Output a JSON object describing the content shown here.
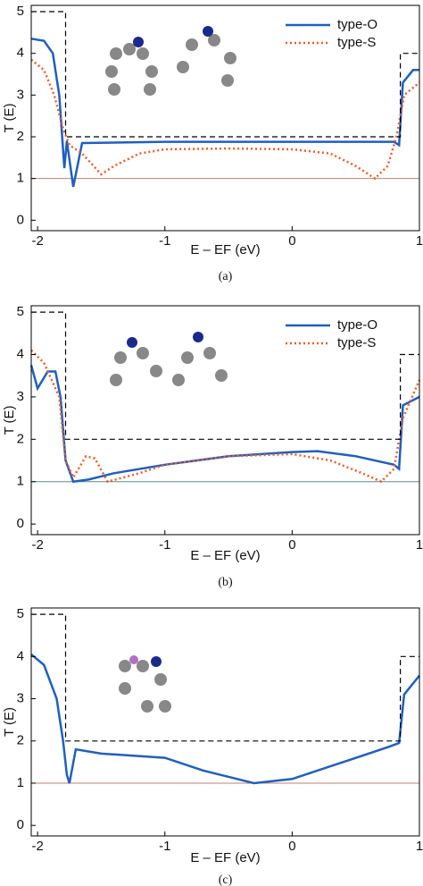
{
  "chart_data": [
    {
      "type": "line",
      "caption": "(a)",
      "x_label": "E – EF (eV)",
      "y_label": "T (E)",
      "xlim": [
        -2.05,
        1.0
      ],
      "ylim": [
        -0.25,
        5.15
      ],
      "xticks": [
        -2,
        -1,
        0,
        1
      ],
      "yticks": [
        0,
        1,
        2,
        3,
        4,
        5
      ],
      "reference_line": 1,
      "reference_color": "#c08070",
      "legend": "upper right",
      "series": [
        {
          "name": "type-O",
          "color": "#1f5fbf",
          "style": "solid",
          "x": [
            -2.05,
            -1.95,
            -1.88,
            -1.83,
            -1.79,
            -1.77,
            -1.72,
            -1.65,
            -1.0,
            0,
            0.8,
            0.84,
            0.87,
            0.95,
            1.0
          ],
          "values": [
            4.35,
            4.3,
            4.0,
            3.0,
            1.25,
            1.9,
            0.8,
            1.85,
            1.88,
            1.88,
            1.88,
            1.8,
            3.3,
            3.6,
            3.6
          ]
        },
        {
          "name": "type-S",
          "color": "#f05a28",
          "style": "dotted",
          "x": [
            -2.05,
            -1.95,
            -1.87,
            -1.8,
            -1.75,
            -1.65,
            -1.5,
            -1.4,
            -1.2,
            -1.0,
            -0.5,
            0,
            0.3,
            0.5,
            0.65,
            0.75,
            0.82,
            0.88,
            1.0
          ],
          "values": [
            3.85,
            3.6,
            3.0,
            2.2,
            1.8,
            1.6,
            1.1,
            1.3,
            1.6,
            1.7,
            1.72,
            1.7,
            1.6,
            1.3,
            1.0,
            1.3,
            2.0,
            3.0,
            3.3
          ]
        },
        {
          "color": "#000000",
          "style": "dashed",
          "x": [
            -2.05,
            -1.78,
            -1.78,
            0.85,
            0.85,
            1.0
          ],
          "values": [
            5,
            5,
            2,
            2,
            4,
            4
          ]
        }
      ]
    },
    {
      "type": "line",
      "caption": "(b)",
      "x_label": "E – EF (eV)",
      "y_label": "T (E)",
      "xlim": [
        -2.05,
        1.0
      ],
      "ylim": [
        -0.25,
        5.15
      ],
      "xticks": [
        -2,
        -1,
        0,
        1
      ],
      "yticks": [
        0,
        1,
        2,
        3,
        4,
        5
      ],
      "reference_line": 1,
      "reference_color": "#5a8a8a",
      "legend": "upper right",
      "series": [
        {
          "name": "type-O",
          "color": "#1f5fbf",
          "style": "solid",
          "x": [
            -2.05,
            -2.0,
            -1.92,
            -1.86,
            -1.82,
            -1.78,
            -1.72,
            -1.6,
            -1.4,
            -1.0,
            -0.5,
            0,
            0.2,
            0.5,
            0.8,
            0.84,
            0.87,
            1.0
          ],
          "values": [
            3.75,
            3.2,
            3.6,
            3.6,
            3.0,
            1.5,
            1.0,
            1.05,
            1.2,
            1.4,
            1.6,
            1.7,
            1.72,
            1.6,
            1.4,
            1.3,
            2.8,
            3.0
          ]
        },
        {
          "name": "type-S",
          "color": "#f05a28",
          "style": "dotted",
          "x": [
            -2.05,
            -1.95,
            -1.83,
            -1.78,
            -1.72,
            -1.62,
            -1.55,
            -1.45,
            -1.2,
            -1.0,
            -0.5,
            0,
            0.3,
            0.55,
            0.7,
            0.8,
            0.87,
            1.0
          ],
          "values": [
            4.1,
            3.8,
            3.0,
            1.5,
            1.1,
            1.6,
            1.55,
            1.0,
            1.2,
            1.4,
            1.6,
            1.65,
            1.5,
            1.2,
            1.0,
            1.3,
            2.5,
            3.4
          ]
        },
        {
          "color": "#000000",
          "style": "dashed",
          "x": [
            -2.05,
            -1.78,
            -1.78,
            0.85,
            0.85,
            1.0
          ],
          "values": [
            5,
            5,
            2,
            2,
            4,
            4
          ]
        }
      ]
    },
    {
      "type": "line",
      "caption": "(c)",
      "x_label": "E – EF (eV)",
      "y_label": "T (E)",
      "xlim": [
        -2.05,
        1.0
      ],
      "ylim": [
        -0.25,
        5.15
      ],
      "xticks": [
        -2,
        -1,
        0,
        1
      ],
      "yticks": [
        0,
        1,
        2,
        3,
        4,
        5
      ],
      "reference_line": 1,
      "reference_color": "#c08070",
      "series": [
        {
          "color": "#1f5fbf",
          "style": "solid",
          "x": [
            -2.05,
            -1.95,
            -1.85,
            -1.8,
            -1.77,
            -1.75,
            -1.7,
            -1.5,
            -1.0,
            -0.7,
            -0.3,
            0,
            0.4,
            0.75,
            0.84,
            0.88,
            1.0
          ],
          "values": [
            4.05,
            3.8,
            3.0,
            2.0,
            1.2,
            1.0,
            1.8,
            1.7,
            1.6,
            1.3,
            1.0,
            1.1,
            1.5,
            1.85,
            1.95,
            3.1,
            3.55
          ]
        },
        {
          "color": "#000000",
          "style": "dashed",
          "x": [
            -2.05,
            -1.78,
            -1.78,
            0.85,
            0.85,
            1.0
          ],
          "values": [
            5,
            5,
            2,
            2,
            4,
            4
          ]
        }
      ]
    }
  ]
}
